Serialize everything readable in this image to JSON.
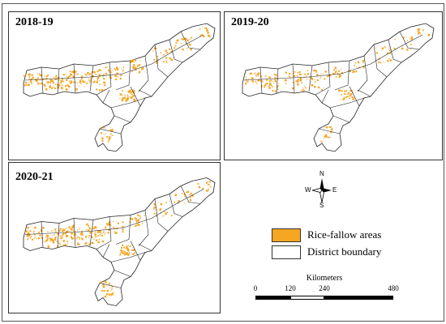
{
  "panels": [
    {
      "label": "2018-19"
    },
    {
      "label": "2019-20"
    },
    {
      "label": "2020-21"
    }
  ],
  "north_arrow": {
    "n": "N",
    "s": "S",
    "e": "E",
    "w": "W",
    "icon": "compass-rose-icon"
  },
  "legend": {
    "items": [
      {
        "label": "Rice-fallow areas",
        "color": "#f5a623"
      },
      {
        "label": "District boundary",
        "color": "#ffffff"
      }
    ]
  },
  "scale_bar": {
    "title": "Kilometers",
    "ticks": [
      "0",
      "120",
      "240",
      "480"
    ]
  },
  "colors": {
    "fallow": "#f5a623",
    "boundary": "#222222"
  }
}
